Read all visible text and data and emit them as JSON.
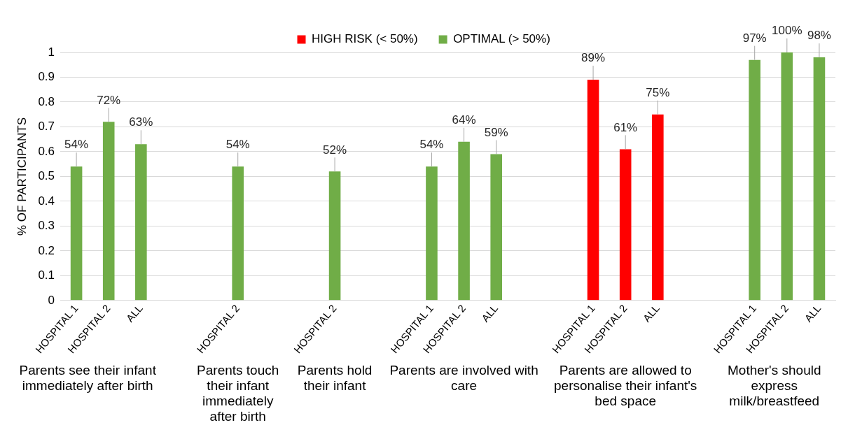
{
  "chart_data": {
    "type": "bar",
    "ylabel": "% OF PARTICIPANTS",
    "categories": [
      "HOSPITAL 1",
      "HOSPITAL 2",
      "ALL",
      null,
      null,
      "HOSPITAL 2",
      null,
      null,
      "HOSPITAL 2",
      null,
      null,
      "HOSPITAL 1",
      "HOSPITAL 2",
      "ALL",
      null,
      null,
      "HOSPITAL 1",
      "HOSPITAL 2",
      "ALL",
      null,
      null,
      "HOSPITAL 1",
      "HOSPITAL 2",
      "ALL"
    ],
    "series": [
      {
        "name": "HIGH RISK (< 50%)",
        "color": "#ff0000",
        "values": [
          null,
          null,
          null,
          null,
          null,
          null,
          null,
          null,
          null,
          null,
          null,
          null,
          null,
          null,
          null,
          null,
          0.89,
          0.61,
          0.75,
          null,
          null,
          null,
          null,
          null
        ],
        "value_labels": [
          null,
          null,
          null,
          null,
          null,
          null,
          null,
          null,
          null,
          null,
          null,
          null,
          null,
          null,
          null,
          null,
          "89%",
          "61%",
          "75%",
          null,
          null,
          null,
          null,
          null
        ]
      },
      {
        "name": "OPTIMAL (> 50%)",
        "color": "#70ad47",
        "values": [
          0.54,
          0.72,
          0.63,
          null,
          null,
          0.54,
          null,
          null,
          0.52,
          null,
          null,
          0.54,
          0.64,
          0.59,
          null,
          null,
          null,
          null,
          null,
          null,
          null,
          0.97,
          1.0,
          0.98
        ],
        "value_labels": [
          "54%",
          "72%",
          "63%",
          null,
          null,
          "54%",
          null,
          null,
          "52%",
          null,
          null,
          "54%",
          "64%",
          "59%",
          null,
          null,
          null,
          null,
          null,
          null,
          null,
          "97%",
          "100%",
          "98%"
        ]
      }
    ],
    "ylim": [
      0,
      1
    ],
    "yticks": [
      0,
      0.1,
      0.2,
      0.3,
      0.4,
      0.5,
      0.6,
      0.7,
      0.8,
      0.9,
      1
    ],
    "grid": "y",
    "legend": "top",
    "annotations": [
      "Parents see their infant immediately after birth",
      "Parents touch their infant immediately after birth",
      "Parents hold their infant",
      "Parents are involved with care",
      "Parents are allowed to personalise their infant's bed space",
      "Mother's should express milk/breastfeed"
    ]
  }
}
